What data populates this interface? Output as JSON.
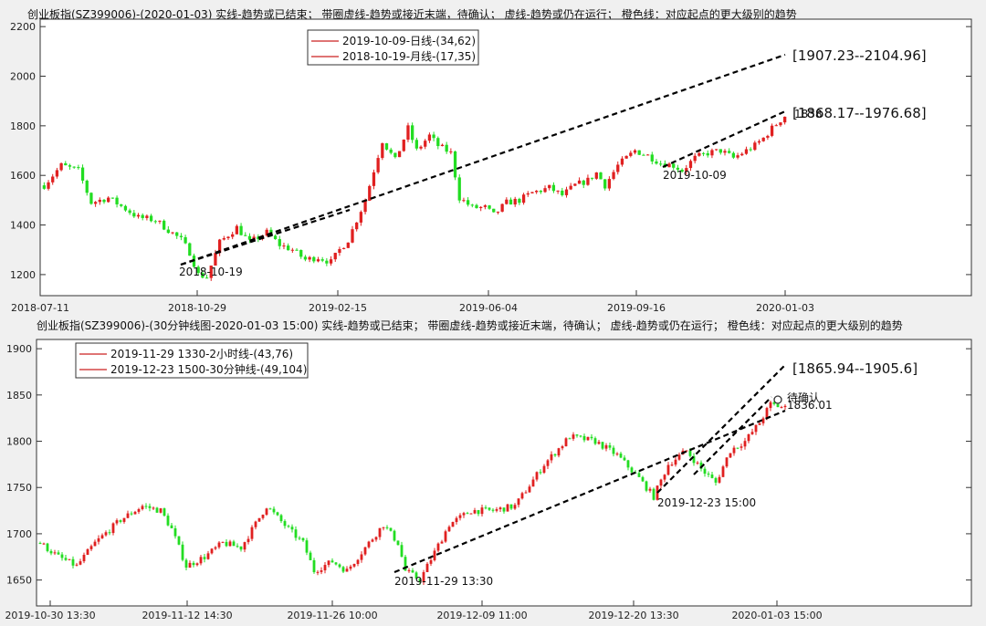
{
  "chart_data": [
    {
      "type": "candlestick",
      "title": "创业板指(SZ399006)-(2020-01-03)  实线-趋势或已结束；  带圈虚线-趋势或接近末端，待确认；  虚线-趋势或仍在运行；  橙色线：对应起点的更大级别的趋势",
      "yticks": [
        1200,
        1400,
        1600,
        1800,
        2000,
        2200
      ],
      "ylim": [
        1115,
        2230
      ],
      "xtick_labels": [
        "2018-07-11",
        "2018-10-29",
        "2019-02-15",
        "2019-06-04",
        "2019-09-16",
        "2020-01-03"
      ],
      "legend": [
        "2019-10-09-日线-(34,62)",
        "2018-10-19-月线-(17,35)"
      ],
      "annotations": [
        "2018-10-19",
        "2019-10-09",
        "[1907.23--2104.96]",
        "[1868.17--1976.68]",
        "1838"
      ],
      "price_path": [
        [
          0,
          1560
        ],
        [
          4,
          1640
        ],
        [
          8,
          1620
        ],
        [
          11,
          1490
        ],
        [
          15,
          1510
        ],
        [
          19,
          1465
        ],
        [
          22,
          1430
        ],
        [
          26,
          1420
        ],
        [
          29,
          1380
        ],
        [
          32,
          1340
        ],
        [
          34,
          1290
        ],
        [
          36,
          1200
        ],
        [
          38,
          1190
        ],
        [
          41,
          1330
        ],
        [
          45,
          1390
        ],
        [
          48,
          1330
        ],
        [
          52,
          1370
        ],
        [
          55,
          1320
        ],
        [
          58,
          1300
        ],
        [
          61,
          1260
        ],
        [
          64,
          1270
        ],
        [
          67,
          1250
        ],
        [
          69,
          1300
        ],
        [
          71,
          1340
        ],
        [
          73,
          1420
        ],
        [
          75,
          1500
        ],
        [
          77,
          1620
        ],
        [
          79,
          1740
        ],
        [
          82,
          1660
        ],
        [
          85,
          1790
        ],
        [
          87,
          1700
        ],
        [
          90,
          1760
        ],
        [
          92,
          1720
        ],
        [
          95,
          1690
        ],
        [
          96,
          1600
        ],
        [
          97,
          1510
        ],
        [
          100,
          1470
        ],
        [
          103,
          1470
        ],
        [
          105,
          1440
        ],
        [
          108,
          1490
        ],
        [
          111,
          1500
        ],
        [
          114,
          1530
        ],
        [
          118,
          1550
        ],
        [
          121,
          1520
        ],
        [
          124,
          1560
        ],
        [
          127,
          1580
        ],
        [
          129,
          1610
        ],
        [
          131,
          1560
        ],
        [
          134,
          1640
        ],
        [
          138,
          1700
        ],
        [
          141,
          1680
        ],
        [
          144,
          1650
        ],
        [
          147,
          1640
        ],
        [
          149,
          1620
        ],
        [
          152,
          1670
        ],
        [
          155,
          1690
        ],
        [
          158,
          1700
        ],
        [
          161,
          1670
        ],
        [
          164,
          1700
        ],
        [
          166,
          1720
        ],
        [
          168,
          1750
        ],
        [
          170,
          1790
        ],
        [
          173,
          1840
        ]
      ]
    },
    {
      "type": "candlestick",
      "title": "创业板指(SZ399006)-(30分钟线图-2020-01-03 15:00)  实线-趋势或已结束；  带圈虚线-趋势或接近末端，待确认；  虚线-趋势或仍在运行；  橙色线：对应起点的更大级别的趋势",
      "yticks": [
        1650,
        1700,
        1750,
        1800,
        1850,
        1900
      ],
      "ylim": [
        1622,
        1910
      ],
      "xtick_labels": [
        "2019-10-30 13:30",
        "2019-11-12 14:30",
        "2019-11-26 10:00",
        "2019-12-09 11:00",
        "2019-12-20 13:30",
        "2020-01-03 15:00"
      ],
      "legend": [
        "2019-11-29 1330-2小时线-(43,76)",
        "2019-12-23 1500-30分钟线-(49,104)"
      ],
      "annotations": [
        "2019-11-29 13:30",
        "2019-12-23 15:00",
        "[1865.94--1905.6]",
        "待确认",
        "1836.01"
      ],
      "price_path": [
        [
          0,
          1690
        ],
        [
          5,
          1675
        ],
        [
          10,
          1665
        ],
        [
          15,
          1690
        ],
        [
          22,
          1715
        ],
        [
          28,
          1730
        ],
        [
          33,
          1725
        ],
        [
          36,
          1705
        ],
        [
          40,
          1665
        ],
        [
          45,
          1675
        ],
        [
          50,
          1690
        ],
        [
          55,
          1685
        ],
        [
          62,
          1730
        ],
        [
          68,
          1705
        ],
        [
          72,
          1690
        ],
        [
          75,
          1660
        ],
        [
          80,
          1670
        ],
        [
          84,
          1660
        ],
        [
          88,
          1680
        ],
        [
          94,
          1710
        ],
        [
          98,
          1690
        ],
        [
          100,
          1660
        ],
        [
          104,
          1650
        ],
        [
          108,
          1680
        ],
        [
          112,
          1710
        ],
        [
          118,
          1725
        ],
        [
          124,
          1725
        ],
        [
          130,
          1730
        ],
        [
          138,
          1775
        ],
        [
          145,
          1805
        ],
        [
          152,
          1800
        ],
        [
          158,
          1785
        ],
        [
          164,
          1760
        ],
        [
          168,
          1740
        ],
        [
          172,
          1775
        ],
        [
          177,
          1790
        ],
        [
          181,
          1770
        ],
        [
          185,
          1755
        ],
        [
          189,
          1790
        ],
        [
          193,
          1800
        ],
        [
          197,
          1820
        ],
        [
          200,
          1840
        ],
        [
          204,
          1836
        ]
      ]
    }
  ]
}
